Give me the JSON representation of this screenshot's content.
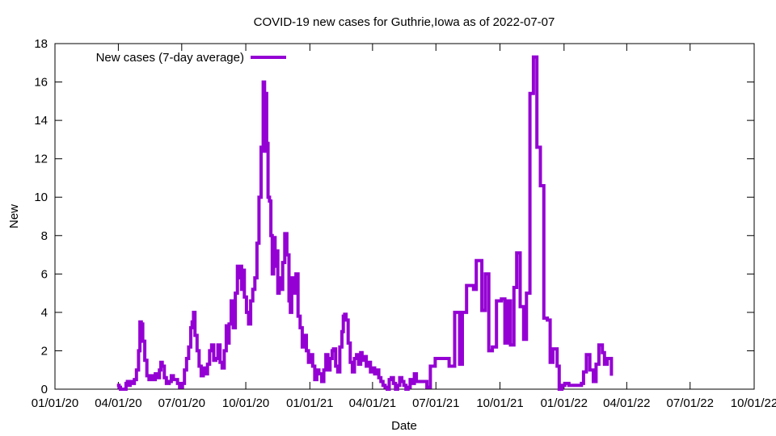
{
  "chart_data": {
    "type": "line",
    "title": "COVID-19 new cases for Guthrie,Iowa as of 2022-07-07",
    "xlabel": "Date",
    "ylabel": "New",
    "xlim": [
      "2020-01-01",
      "2022-10-01"
    ],
    "ylim": [
      0,
      18
    ],
    "yticks": [
      0,
      2,
      4,
      6,
      8,
      10,
      12,
      14,
      16,
      18
    ],
    "xticks": [
      "2020-01-01",
      "2020-04-01",
      "2020-07-01",
      "2020-10-01",
      "2021-01-01",
      "2021-04-01",
      "2021-07-01",
      "2021-10-01",
      "2022-01-01",
      "2022-04-01",
      "2022-07-01",
      "2022-10-01"
    ],
    "xtick_labels": [
      "01/01/20",
      "04/01/20",
      "07/01/20",
      "10/01/20",
      "01/01/21",
      "04/01/21",
      "07/01/21",
      "10/01/21",
      "01/01/22",
      "04/01/22",
      "07/01/22",
      "10/01/22"
    ],
    "grid": false,
    "legend_position": "top-left",
    "colors": {
      "series": "#9400d3"
    },
    "series": [
      {
        "name": "New cases (7-day average)",
        "points": [
          [
            "2020-03-30",
            0.2
          ],
          [
            "2020-04-02",
            0.1
          ],
          [
            "2020-04-04",
            0.0
          ],
          [
            "2020-04-10",
            0.0
          ],
          [
            "2020-04-12",
            0.3
          ],
          [
            "2020-04-14",
            0.4
          ],
          [
            "2020-04-16",
            0.2
          ],
          [
            "2020-04-18",
            0.4
          ],
          [
            "2020-04-21",
            0.3
          ],
          [
            "2020-04-24",
            0.5
          ],
          [
            "2020-04-27",
            1.0
          ],
          [
            "2020-04-30",
            2.0
          ],
          [
            "2020-05-02",
            3.5
          ],
          [
            "2020-05-04",
            3.4
          ],
          [
            "2020-05-06",
            2.5
          ],
          [
            "2020-05-09",
            1.5
          ],
          [
            "2020-05-12",
            0.7
          ],
          [
            "2020-05-15",
            0.5
          ],
          [
            "2020-05-18",
            0.7
          ],
          [
            "2020-05-21",
            0.5
          ],
          [
            "2020-05-24",
            0.8
          ],
          [
            "2020-05-27",
            0.6
          ],
          [
            "2020-05-30",
            1.0
          ],
          [
            "2020-06-01",
            1.4
          ],
          [
            "2020-06-03",
            1.2
          ],
          [
            "2020-06-06",
            0.6
          ],
          [
            "2020-06-09",
            0.3
          ],
          [
            "2020-06-13",
            0.4
          ],
          [
            "2020-06-16",
            0.7
          ],
          [
            "2020-06-19",
            0.5
          ],
          [
            "2020-06-22",
            0.5
          ],
          [
            "2020-06-25",
            0.3
          ],
          [
            "2020-06-28",
            0.1
          ],
          [
            "2020-07-02",
            0.3
          ],
          [
            "2020-07-05",
            1.0
          ],
          [
            "2020-07-08",
            1.6
          ],
          [
            "2020-07-11",
            2.2
          ],
          [
            "2020-07-14",
            3.2
          ],
          [
            "2020-07-16",
            3.5
          ],
          [
            "2020-07-18",
            4.0
          ],
          [
            "2020-07-20",
            2.8
          ],
          [
            "2020-07-23",
            2.0
          ],
          [
            "2020-07-26",
            1.2
          ],
          [
            "2020-07-29",
            0.7
          ],
          [
            "2020-08-01",
            1.1
          ],
          [
            "2020-08-04",
            0.8
          ],
          [
            "2020-08-07",
            1.3
          ],
          [
            "2020-08-10",
            2.0
          ],
          [
            "2020-08-13",
            2.3
          ],
          [
            "2020-08-16",
            1.5
          ],
          [
            "2020-08-19",
            1.6
          ],
          [
            "2020-08-22",
            2.3
          ],
          [
            "2020-08-25",
            1.4
          ],
          [
            "2020-08-28",
            1.1
          ],
          [
            "2020-08-31",
            2.0
          ],
          [
            "2020-09-03",
            3.3
          ],
          [
            "2020-09-05",
            2.4
          ],
          [
            "2020-09-07",
            3.4
          ],
          [
            "2020-09-10",
            4.6
          ],
          [
            "2020-09-13",
            3.2
          ],
          [
            "2020-09-16",
            5.0
          ],
          [
            "2020-09-19",
            6.4
          ],
          [
            "2020-09-21",
            5.8
          ],
          [
            "2020-09-23",
            6.4
          ],
          [
            "2020-09-25",
            5.2
          ],
          [
            "2020-09-27",
            6.2
          ],
          [
            "2020-09-29",
            4.8
          ],
          [
            "2020-10-02",
            4.0
          ],
          [
            "2020-10-05",
            3.4
          ],
          [
            "2020-10-08",
            4.6
          ],
          [
            "2020-10-11",
            5.2
          ],
          [
            "2020-10-14",
            5.8
          ],
          [
            "2020-10-17",
            7.6
          ],
          [
            "2020-10-20",
            10.0
          ],
          [
            "2020-10-23",
            12.6
          ],
          [
            "2020-10-25",
            12.4
          ],
          [
            "2020-10-26",
            16.0
          ],
          [
            "2020-10-28",
            12.4
          ],
          [
            "2020-10-29",
            15.4
          ],
          [
            "2020-10-31",
            12.8
          ],
          [
            "2020-11-02",
            10.0
          ],
          [
            "2020-11-04",
            9.8
          ],
          [
            "2020-11-06",
            8.0
          ],
          [
            "2020-11-08",
            6.0
          ],
          [
            "2020-11-10",
            7.9
          ],
          [
            "2020-11-12",
            6.4
          ],
          [
            "2020-11-14",
            7.2
          ],
          [
            "2020-11-16",
            5.0
          ],
          [
            "2020-11-18",
            5.8
          ],
          [
            "2020-11-20",
            5.2
          ],
          [
            "2020-11-23",
            6.6
          ],
          [
            "2020-11-26",
            8.1
          ],
          [
            "2020-11-29",
            7.0
          ],
          [
            "2020-12-02",
            4.6
          ],
          [
            "2020-12-04",
            4.0
          ],
          [
            "2020-12-06",
            5.8
          ],
          [
            "2020-12-09",
            5.0
          ],
          [
            "2020-12-12",
            6.0
          ],
          [
            "2020-12-15",
            3.8
          ],
          [
            "2020-12-18",
            3.2
          ],
          [
            "2020-12-21",
            2.2
          ],
          [
            "2020-12-24",
            2.8
          ],
          [
            "2020-12-27",
            2.0
          ],
          [
            "2020-12-30",
            1.4
          ],
          [
            "2021-01-02",
            1.8
          ],
          [
            "2021-01-05",
            1.2
          ],
          [
            "2021-01-08",
            0.5
          ],
          [
            "2021-01-11",
            1.0
          ],
          [
            "2021-01-14",
            0.8
          ],
          [
            "2021-01-18",
            0.4
          ],
          [
            "2021-01-21",
            1.0
          ],
          [
            "2021-01-24",
            1.8
          ],
          [
            "2021-01-27",
            1.0
          ],
          [
            "2021-01-30",
            1.6
          ],
          [
            "2021-02-02",
            2.0
          ],
          [
            "2021-02-04",
            2.1
          ],
          [
            "2021-02-07",
            1.2
          ],
          [
            "2021-02-10",
            0.9
          ],
          [
            "2021-02-13",
            2.2
          ],
          [
            "2021-02-16",
            3.0
          ],
          [
            "2021-02-18",
            3.8
          ],
          [
            "2021-02-20",
            3.9
          ],
          [
            "2021-02-22",
            3.6
          ],
          [
            "2021-02-25",
            2.4
          ],
          [
            "2021-02-28",
            1.4
          ],
          [
            "2021-03-03",
            0.9
          ],
          [
            "2021-03-06",
            1.6
          ],
          [
            "2021-03-09",
            1.8
          ],
          [
            "2021-03-12",
            1.3
          ],
          [
            "2021-03-15",
            1.9
          ],
          [
            "2021-03-17",
            1.5
          ],
          [
            "2021-03-20",
            1.7
          ],
          [
            "2021-03-23",
            1.2
          ],
          [
            "2021-03-26",
            1.4
          ],
          [
            "2021-03-29",
            0.9
          ],
          [
            "2021-04-01",
            1.1
          ],
          [
            "2021-04-04",
            0.8
          ],
          [
            "2021-04-07",
            1.0
          ],
          [
            "2021-04-10",
            0.6
          ],
          [
            "2021-04-13",
            0.4
          ],
          [
            "2021-04-16",
            0.2
          ],
          [
            "2021-04-19",
            0.1
          ],
          [
            "2021-04-22",
            0.0
          ],
          [
            "2021-04-25",
            0.5
          ],
          [
            "2021-04-28",
            0.6
          ],
          [
            "2021-05-01",
            0.3
          ],
          [
            "2021-05-04",
            0.0
          ],
          [
            "2021-05-07",
            0.2
          ],
          [
            "2021-05-10",
            0.6
          ],
          [
            "2021-05-13",
            0.4
          ],
          [
            "2021-05-16",
            0.2
          ],
          [
            "2021-05-19",
            0.0
          ],
          [
            "2021-05-22",
            0.1
          ],
          [
            "2021-05-25",
            0.5
          ],
          [
            "2021-05-28",
            0.3
          ],
          [
            "2021-05-31",
            0.8
          ],
          [
            "2021-06-03",
            0.4
          ],
          [
            "2021-06-14",
            0.4
          ],
          [
            "2021-06-18",
            0.1
          ],
          [
            "2021-06-23",
            1.2
          ],
          [
            "2021-06-30",
            1.6
          ],
          [
            "2021-07-20",
            1.2
          ],
          [
            "2021-07-28",
            4.0
          ],
          [
            "2021-08-04",
            1.3
          ],
          [
            "2021-08-08",
            4.0
          ],
          [
            "2021-08-14",
            5.4
          ],
          [
            "2021-08-24",
            5.2
          ],
          [
            "2021-08-28",
            6.7
          ],
          [
            "2021-09-05",
            4.1
          ],
          [
            "2021-09-10",
            6.0
          ],
          [
            "2021-09-15",
            2.0
          ],
          [
            "2021-09-20",
            2.2
          ],
          [
            "2021-09-26",
            4.6
          ],
          [
            "2021-10-03",
            4.7
          ],
          [
            "2021-10-08",
            2.4
          ],
          [
            "2021-10-12",
            4.6
          ],
          [
            "2021-10-16",
            2.3
          ],
          [
            "2021-10-21",
            5.3
          ],
          [
            "2021-10-25",
            7.1
          ],
          [
            "2021-10-30",
            4.3
          ],
          [
            "2021-11-04",
            2.6
          ],
          [
            "2021-11-08",
            5.0
          ],
          [
            "2021-11-13",
            15.4
          ],
          [
            "2021-11-18",
            17.3
          ],
          [
            "2021-11-23",
            12.6
          ],
          [
            "2021-11-28",
            10.6
          ],
          [
            "2021-12-03",
            3.7
          ],
          [
            "2021-12-08",
            3.6
          ],
          [
            "2021-12-12",
            1.4
          ],
          [
            "2021-12-16",
            2.1
          ],
          [
            "2021-12-22",
            1.2
          ],
          [
            "2021-12-25",
            0.0
          ],
          [
            "2021-12-29",
            0.2
          ],
          [
            "2022-01-02",
            0.3
          ],
          [
            "2022-01-08",
            0.2
          ],
          [
            "2022-01-18",
            0.2
          ],
          [
            "2022-01-26",
            0.3
          ],
          [
            "2022-01-29",
            0.9
          ],
          [
            "2022-02-02",
            1.8
          ],
          [
            "2022-02-07",
            1.0
          ],
          [
            "2022-02-12",
            0.4
          ],
          [
            "2022-02-16",
            1.3
          ],
          [
            "2022-02-20",
            2.3
          ],
          [
            "2022-02-25",
            1.9
          ],
          [
            "2022-02-28",
            1.3
          ],
          [
            "2022-03-04",
            1.6
          ],
          [
            "2022-03-10",
            0.7
          ]
        ]
      }
    ]
  }
}
